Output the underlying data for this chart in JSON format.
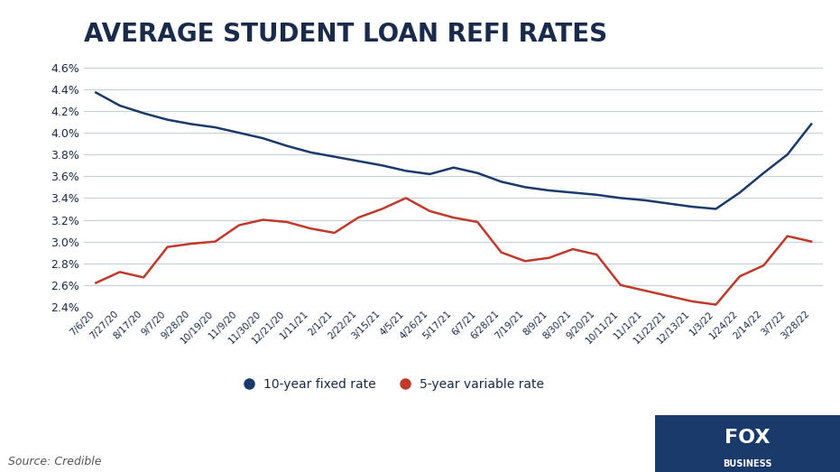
{
  "title": "AVERAGE STUDENT LOAN REFI RATES",
  "title_fontsize": 20,
  "title_fontweight": "bold",
  "background_color": "#ffffff",
  "line_color_fixed": "#1a3a6b",
  "line_color_variable": "#c0392b",
  "xlabel": "",
  "ylabel": "",
  "ylim": [
    2.4,
    4.7
  ],
  "yticks": [
    2.4,
    2.6,
    2.8,
    3.0,
    3.2,
    3.4,
    3.6,
    3.8,
    4.0,
    4.2,
    4.4,
    4.6
  ],
  "source_text": "Source: Credible",
  "legend_labels": [
    "10-year fixed rate",
    "5-year variable rate"
  ],
  "x_labels": [
    "7/6/20",
    "7/27/20",
    "8/17/20",
    "9/7/20",
    "9/28/20",
    "10/19/20",
    "11/9/20",
    "11/30/20",
    "12/21/20",
    "1/11/21",
    "2/1/21",
    "2/22/21",
    "3/15/21",
    "4/5/21",
    "4/26/21",
    "5/17/21",
    "6/7/21",
    "6/28/21",
    "7/19/21",
    "8/9/21",
    "8/30/21",
    "9/20/21",
    "10/11/21",
    "11/1/21",
    "11/22/21",
    "12/13/21",
    "1/3/22",
    "1/24/22",
    "2/14/22",
    "3/7/22",
    "3/28/22"
  ],
  "fixed_10yr": [
    4.37,
    4.25,
    4.18,
    4.12,
    4.08,
    4.05,
    4.0,
    3.95,
    3.88,
    3.82,
    3.78,
    3.74,
    3.7,
    3.65,
    3.62,
    3.68,
    3.63,
    3.55,
    3.5,
    3.47,
    3.45,
    3.43,
    3.4,
    3.38,
    3.35,
    3.32,
    3.3,
    3.45,
    3.63,
    3.8,
    4.08
  ],
  "var_5yr": [
    2.62,
    2.72,
    2.67,
    2.95,
    2.98,
    3.0,
    3.15,
    3.2,
    3.18,
    3.12,
    3.08,
    3.22,
    3.3,
    3.4,
    3.28,
    3.22,
    3.18,
    2.9,
    2.82,
    2.85,
    2.93,
    2.88,
    2.6,
    2.55,
    2.5,
    2.45,
    2.42,
    2.68,
    2.78,
    3.05,
    3.0
  ]
}
